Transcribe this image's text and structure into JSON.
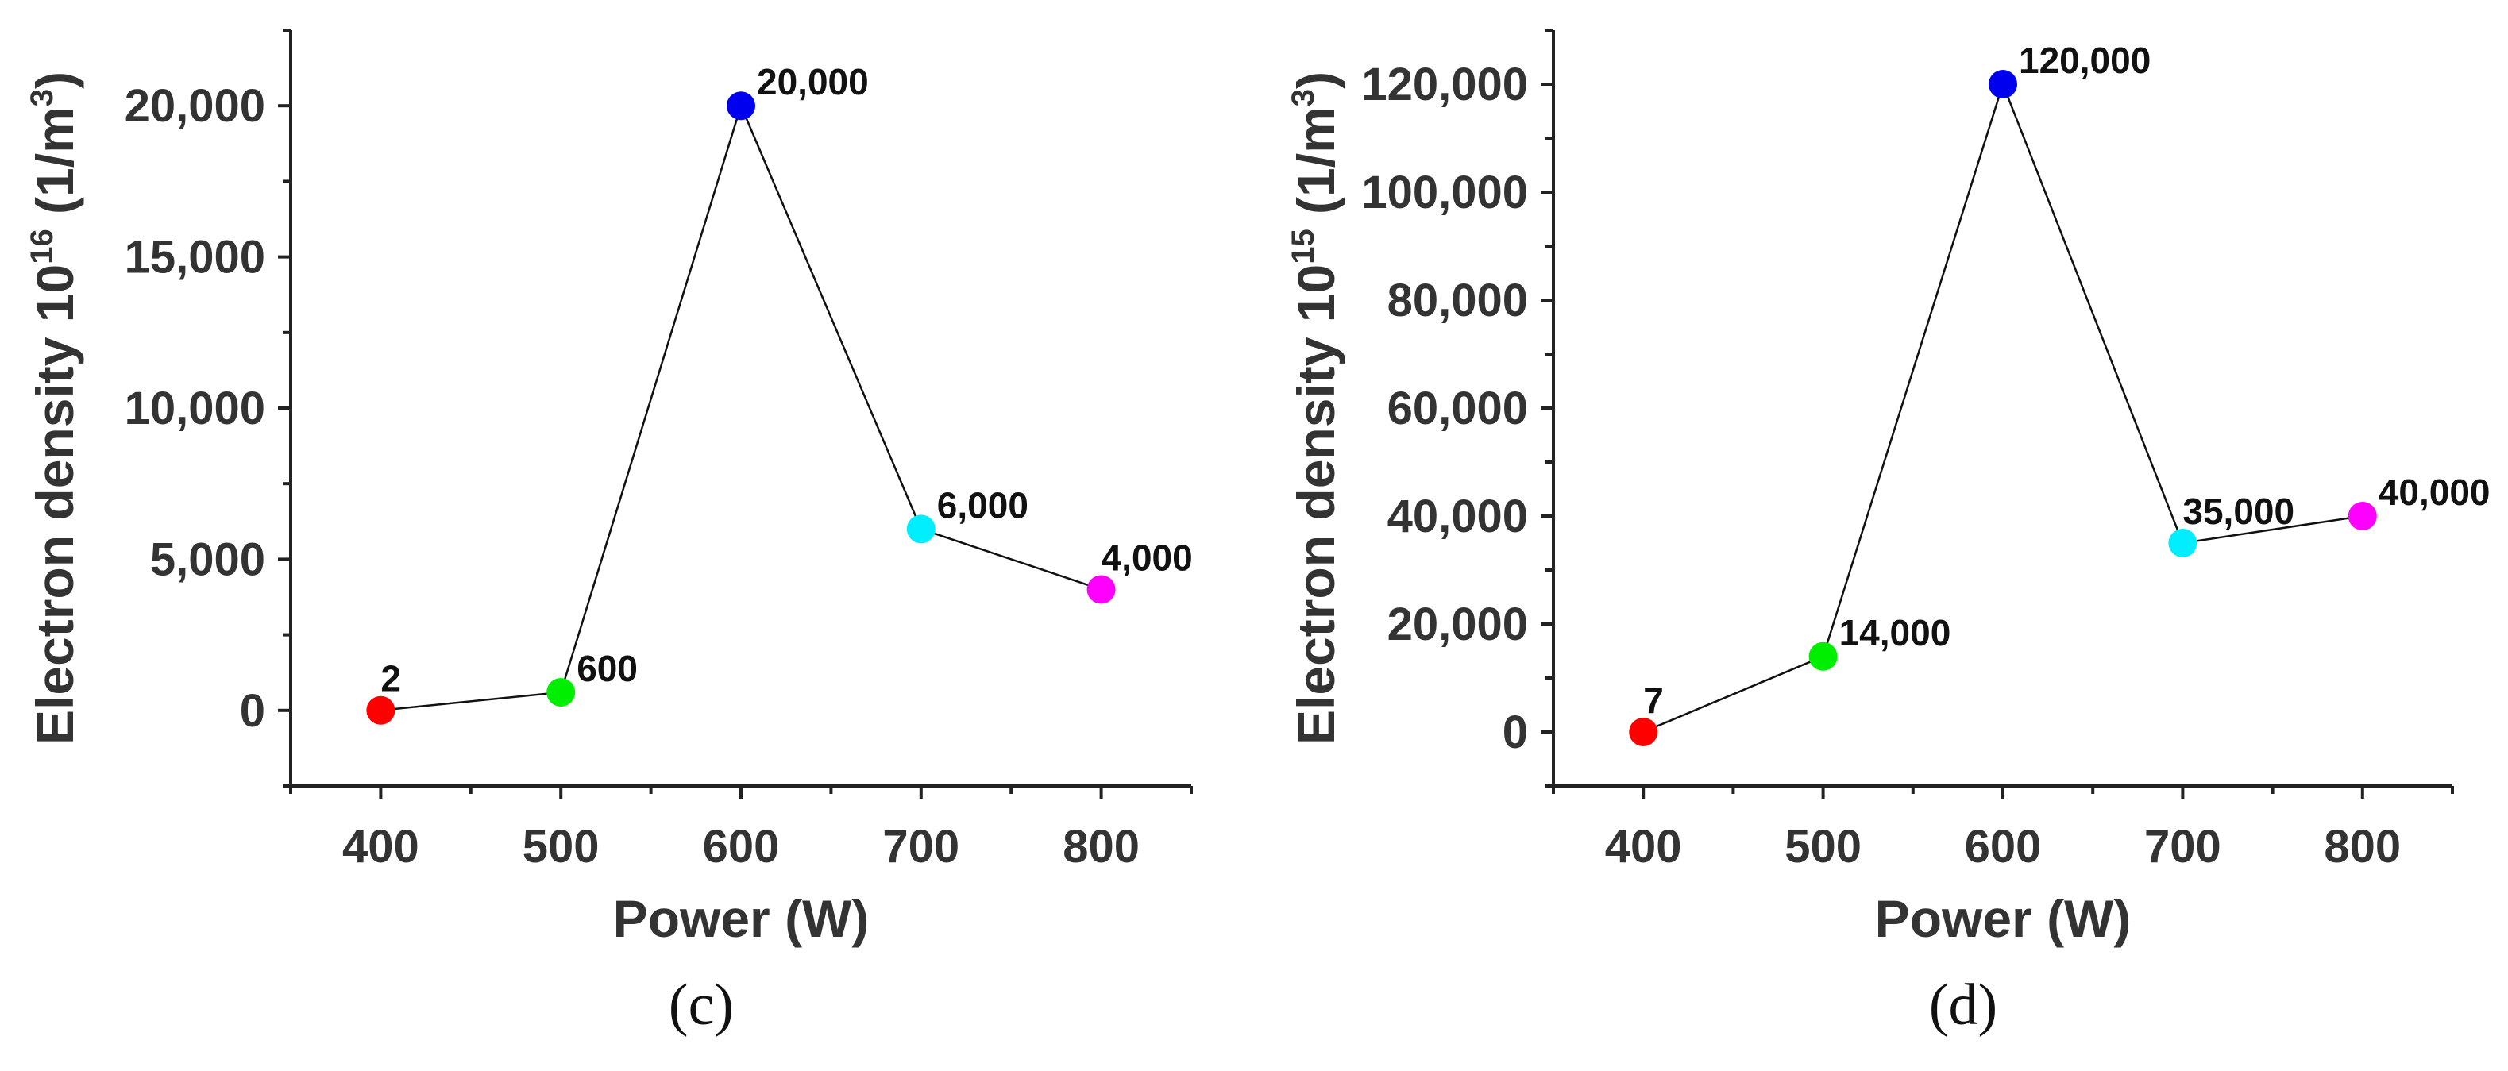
{
  "chart_data": [
    {
      "type": "line",
      "panel_label": "(c)",
      "xlabel": "Power (W)",
      "ylabel_main": "Electron density 10",
      "ylabel_exp": "16",
      "ylabel_unit_open": " (1/m",
      "ylabel_unit_exp": "3",
      "ylabel_unit_close": ")",
      "xlim": [
        350,
        850
      ],
      "ylim": [
        -2500,
        22500
      ],
      "x_ticks": [
        400,
        500,
        600,
        700,
        800
      ],
      "x_tick_labels": [
        "400",
        "500",
        "600",
        "700",
        "800"
      ],
      "y_ticks": [
        0,
        5000,
        10000,
        15000,
        20000
      ],
      "y_tick_labels": [
        "0",
        "5,000",
        "10,000",
        "15,000",
        "20,000"
      ],
      "x": [
        400,
        500,
        600,
        700,
        800
      ],
      "y": [
        2,
        600,
        20000,
        6000,
        4000
      ],
      "point_labels": [
        "2",
        "600",
        "20,000",
        "6,000",
        "4,000"
      ],
      "point_colors": [
        "#ff0000",
        "#00ee00",
        "#0000ee",
        "#00eeff",
        "#ff00ff"
      ]
    },
    {
      "type": "line",
      "panel_label": "(d)",
      "xlabel": "Power (W)",
      "ylabel_main": "Electron density 10",
      "ylabel_exp": "15",
      "ylabel_unit_open": " (1/m",
      "ylabel_unit_exp": "3",
      "ylabel_unit_close": ")",
      "xlim": [
        350,
        850
      ],
      "ylim": [
        -10000,
        130000
      ],
      "x_ticks": [
        400,
        500,
        600,
        700,
        800
      ],
      "x_tick_labels": [
        "400",
        "500",
        "600",
        "700",
        "800"
      ],
      "y_ticks": [
        0,
        20000,
        40000,
        60000,
        80000,
        100000,
        120000
      ],
      "y_tick_labels": [
        "0",
        "20,000",
        "40,000",
        "60,000",
        "80,000",
        "100,000",
        "120,000"
      ],
      "x": [
        400,
        500,
        600,
        700,
        800
      ],
      "y": [
        7,
        14000,
        120000,
        35000,
        40000
      ],
      "point_labels": [
        "7",
        "14,000",
        "120,000",
        "35,000",
        "40,000"
      ],
      "point_colors": [
        "#ff0000",
        "#00ee00",
        "#0000ee",
        "#00eeff",
        "#ff00ff"
      ]
    }
  ]
}
